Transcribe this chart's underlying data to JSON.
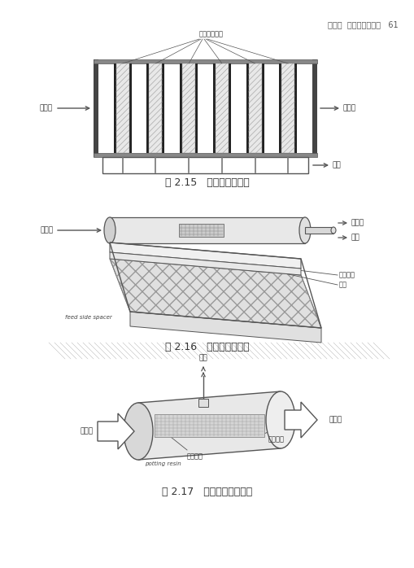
{
  "page_header": "第二章  水高級處理技術   61",
  "fig1_caption": "圖 2.15   平板式薄膜模組",
  "fig2_caption": "圖 2.16   螺捲式薄膜模組",
  "fig3_caption": "圖 2.17   中空絲膜薄膜模組",
  "fig1_labels": {
    "top": "平板薄膜組合",
    "left": "進流水",
    "right": "濃縮液",
    "bottom_right": "透液"
  },
  "fig2_labels": {
    "left": "進流水",
    "top_right1": "濃縮液",
    "top_right2": "透液",
    "mid_right1": "透液收集",
    "mid_right2": "薄膜",
    "bottom_left": "feed side spacer"
  },
  "fig3_labels": {
    "top": "透液",
    "left": "進流水",
    "right": "濃縮液",
    "mid1": "中空絲線",
    "mid2": "穿孔集管",
    "bottom": "potting resin"
  },
  "line_color": "#555555",
  "text_color": "#333333",
  "header_color": "#555555"
}
